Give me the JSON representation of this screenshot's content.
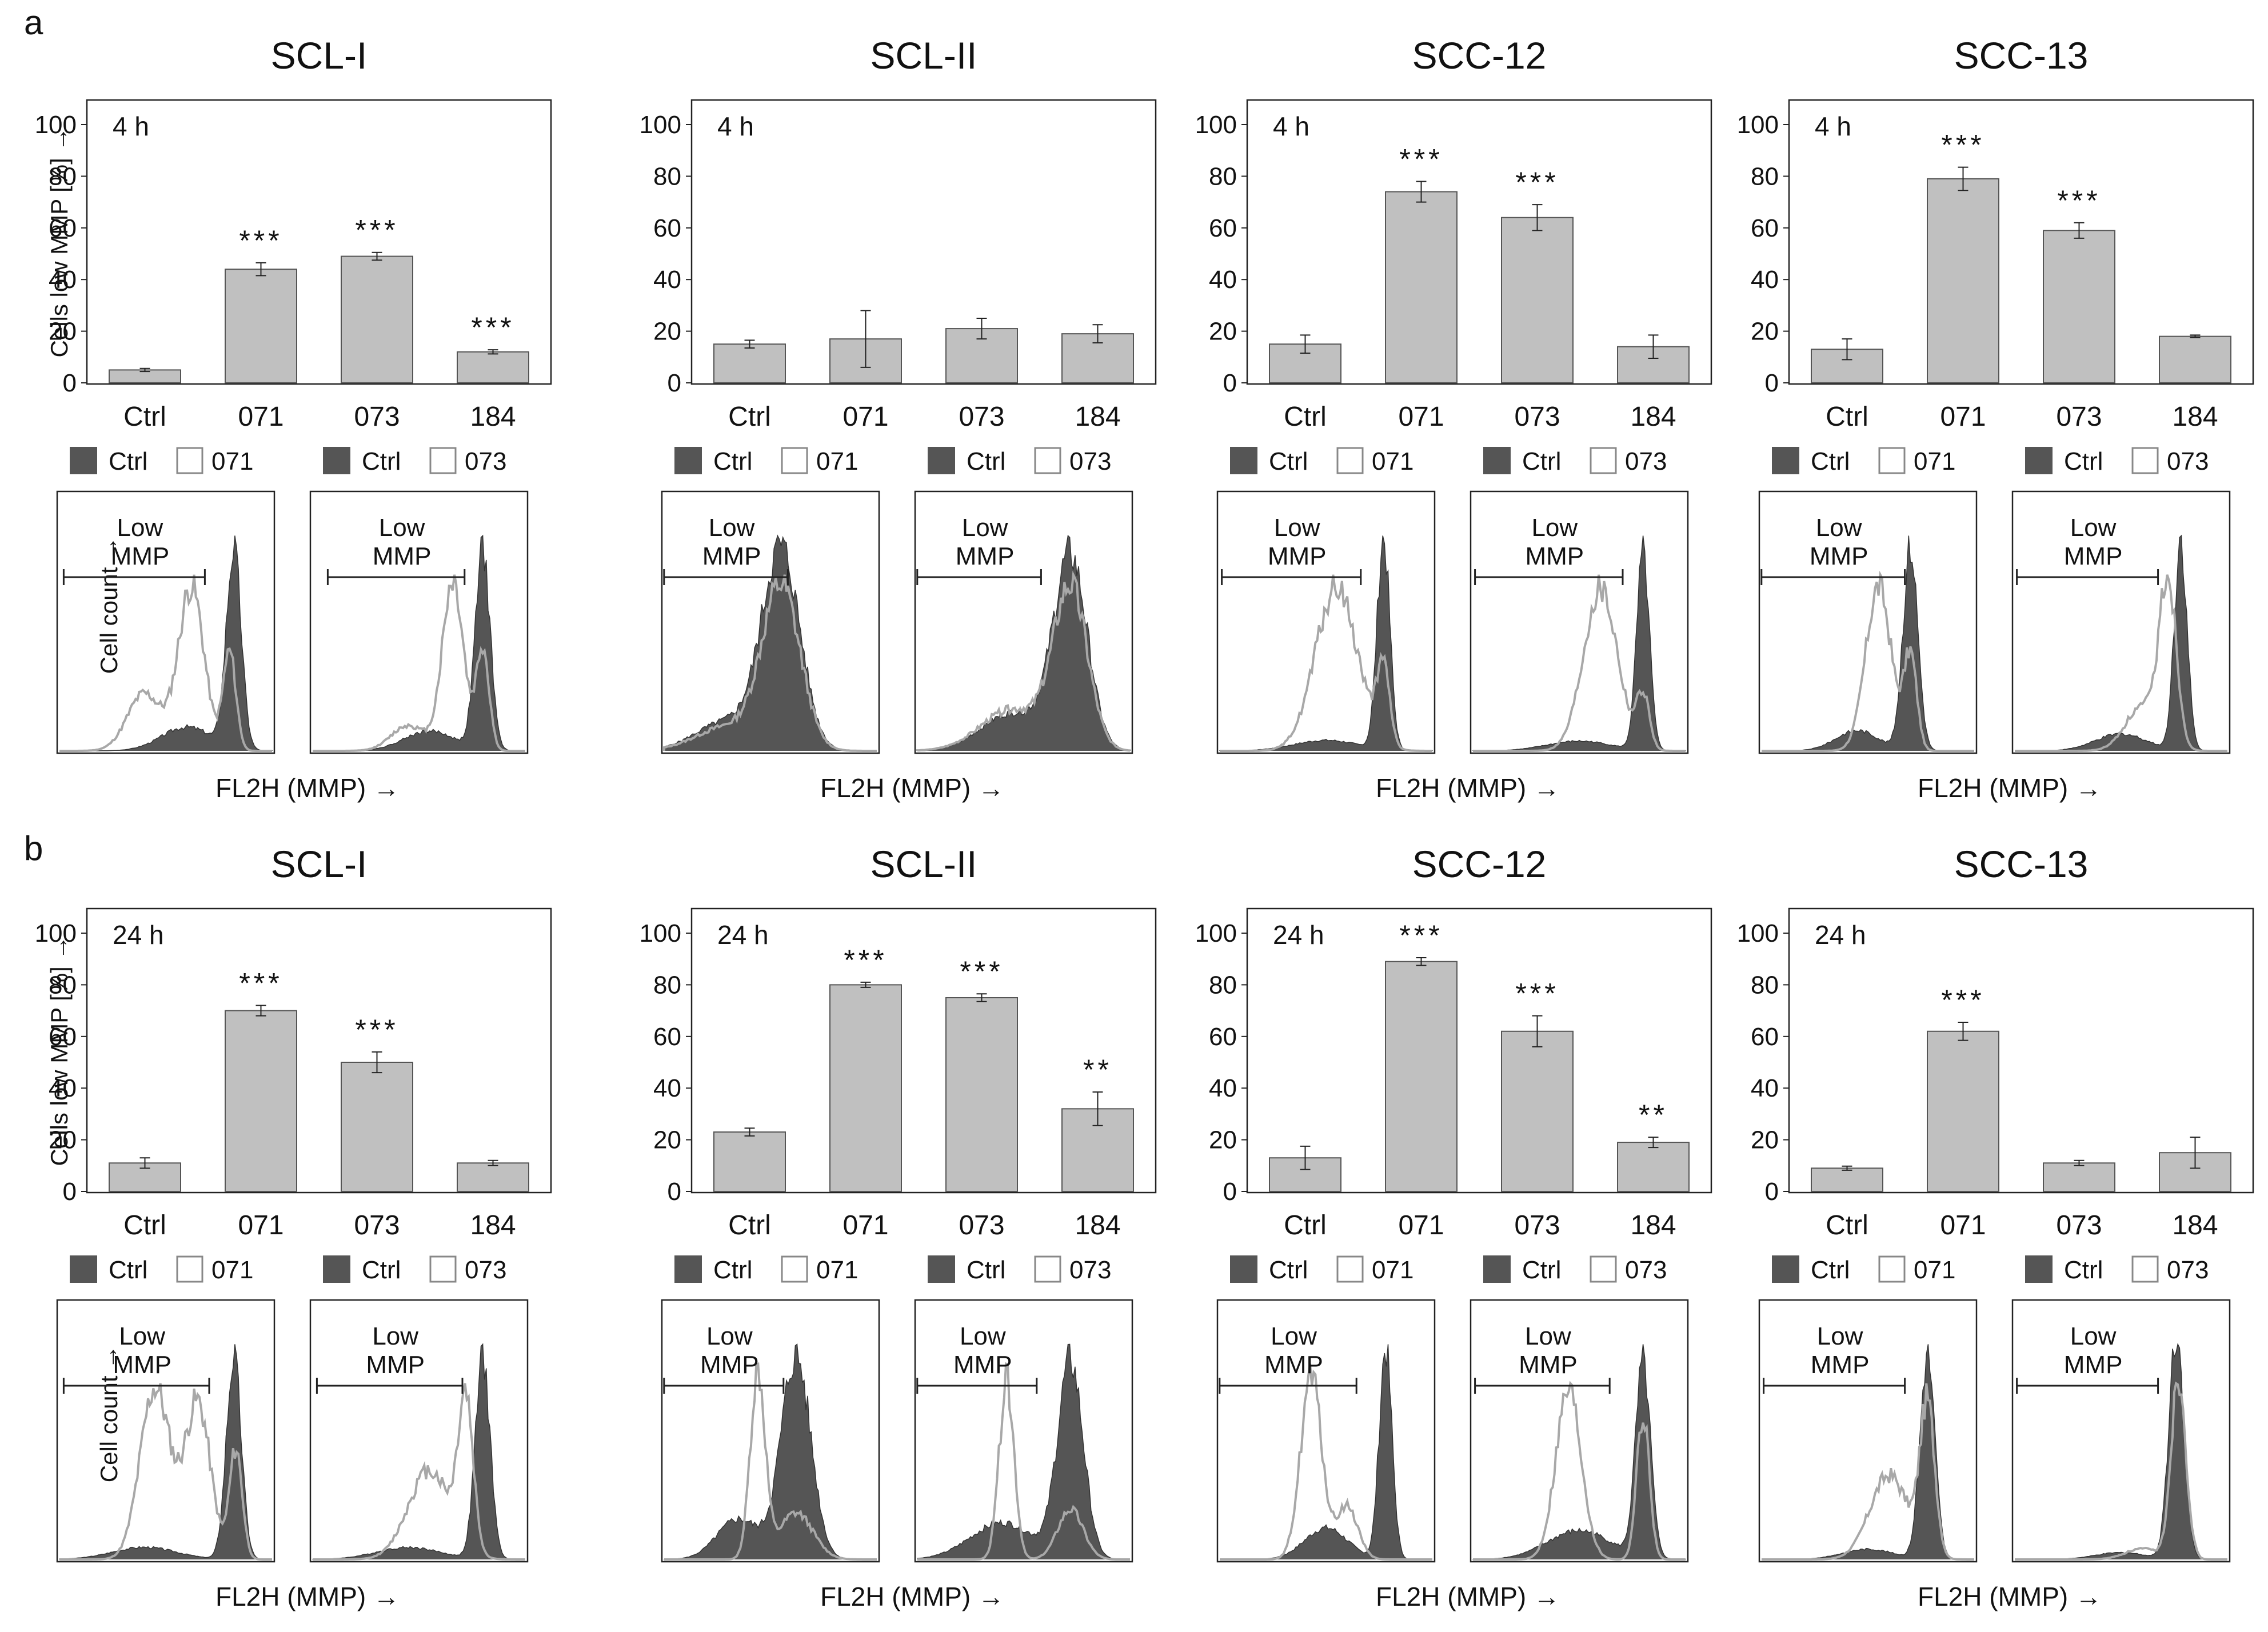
{
  "panels": [
    {
      "letter": "a",
      "time": "4 h",
      "y_label": "Cells low MMP [%]",
      "hist_y_label": "Cell count",
      "hist_x_label": "FL2H (MMP)",
      "categories": [
        "Ctrl",
        "071",
        "073",
        "184"
      ],
      "ylim": [
        0,
        100
      ],
      "yticks": [
        0,
        20,
        40,
        60,
        80,
        100
      ],
      "cell_lines": [
        {
          "name": "SCL-I",
          "values": [
            5,
            44,
            49,
            12
          ],
          "errors": [
            0.6,
            2.5,
            1.5,
            0.8
          ],
          "sig": [
            "",
            "***",
            "***",
            "***"
          ]
        },
        {
          "name": "SCL-II",
          "values": [
            15,
            17,
            21,
            19
          ],
          "errors": [
            1.5,
            11,
            4,
            3.5
          ],
          "sig": [
            "",
            "",
            "",
            ""
          ]
        },
        {
          "name": "SCC-12",
          "values": [
            15,
            74,
            64,
            14
          ],
          "errors": [
            3.5,
            4,
            5,
            4.5
          ],
          "sig": [
            "",
            "***",
            "***",
            ""
          ]
        },
        {
          "name": "SCC-13",
          "values": [
            13,
            79,
            59,
            18
          ],
          "errors": [
            4,
            4.5,
            3,
            0.5
          ],
          "sig": [
            "",
            "***",
            "***",
            ""
          ]
        }
      ]
    },
    {
      "letter": "b",
      "time": "24 h",
      "y_label": "Cells low MMP [%]",
      "hist_y_label": "Cell count",
      "hist_x_label": "FL2H (MMP)",
      "categories": [
        "Ctrl",
        "071",
        "073",
        "184"
      ],
      "ylim": [
        0,
        100
      ],
      "yticks": [
        0,
        20,
        40,
        60,
        80,
        100
      ],
      "cell_lines": [
        {
          "name": "SCL-I",
          "values": [
            11,
            70,
            50,
            11
          ],
          "errors": [
            2,
            2,
            4,
            1
          ],
          "sig": [
            "",
            "***",
            "***",
            ""
          ]
        },
        {
          "name": "SCL-II",
          "values": [
            23,
            80,
            75,
            32
          ],
          "errors": [
            1.5,
            1,
            1.5,
            6.5
          ],
          "sig": [
            "",
            "***",
            "***",
            "**"
          ]
        },
        {
          "name": "SCC-12",
          "values": [
            13,
            89,
            62,
            19
          ],
          "errors": [
            4.5,
            1.5,
            6,
            2
          ],
          "sig": [
            "",
            "***",
            "***",
            "**"
          ]
        },
        {
          "name": "SCC-13",
          "values": [
            9,
            62,
            11,
            15
          ],
          "errors": [
            0.8,
            3.5,
            1,
            6
          ],
          "sig": [
            "",
            "***",
            "",
            ""
          ]
        }
      ]
    }
  ],
  "histogram_legend": {
    "ctrl": "Ctrl",
    "treated": [
      "071",
      "073"
    ]
  },
  "gate_label_line1": "Low",
  "gate_label_line2": "MMP",
  "colors": {
    "bar_fill": "#c0c0c0",
    "bar_stroke": "#555555",
    "ctrl_fill": "#555555",
    "treated_line": "#a8a8a8",
    "frame": "#222222"
  },
  "chart_data": [
    {
      "type": "bar",
      "title": "SCL-I",
      "annotation": "4 h",
      "categories": [
        "Ctrl",
        "071",
        "073",
        "184"
      ],
      "values": [
        5,
        44,
        49,
        12
      ],
      "ylabel": "Cells low MMP [%]",
      "ylim": [
        0,
        100
      ]
    },
    {
      "type": "bar",
      "title": "SCL-II",
      "annotation": "4 h",
      "categories": [
        "Ctrl",
        "071",
        "073",
        "184"
      ],
      "values": [
        15,
        17,
        21,
        19
      ],
      "ylim": [
        0,
        100
      ]
    },
    {
      "type": "bar",
      "title": "SCC-12",
      "annotation": "4 h",
      "categories": [
        "Ctrl",
        "071",
        "073",
        "184"
      ],
      "values": [
        15,
        74,
        64,
        14
      ],
      "ylim": [
        0,
        100
      ]
    },
    {
      "type": "bar",
      "title": "SCC-13",
      "annotation": "4 h",
      "categories": [
        "Ctrl",
        "071",
        "073",
        "184"
      ],
      "values": [
        13,
        79,
        59,
        18
      ],
      "ylim": [
        0,
        100
      ]
    },
    {
      "type": "bar",
      "title": "SCL-I",
      "annotation": "24 h",
      "categories": [
        "Ctrl",
        "071",
        "073",
        "184"
      ],
      "values": [
        11,
        70,
        50,
        11
      ],
      "ylabel": "Cells low MMP [%]",
      "ylim": [
        0,
        100
      ]
    },
    {
      "type": "bar",
      "title": "SCL-II",
      "annotation": "24 h",
      "categories": [
        "Ctrl",
        "071",
        "073",
        "184"
      ],
      "values": [
        23,
        80,
        75,
        32
      ],
      "ylim": [
        0,
        100
      ]
    },
    {
      "type": "bar",
      "title": "SCC-12",
      "annotation": "24 h",
      "categories": [
        "Ctrl",
        "071",
        "073",
        "184"
      ],
      "values": [
        13,
        89,
        62,
        19
      ],
      "ylim": [
        0,
        100
      ]
    },
    {
      "type": "bar",
      "title": "SCC-13",
      "annotation": "24 h",
      "categories": [
        "Ctrl",
        "071",
        "073",
        "184"
      ],
      "values": [
        9,
        62,
        11,
        15
      ],
      "ylim": [
        0,
        100
      ]
    }
  ]
}
